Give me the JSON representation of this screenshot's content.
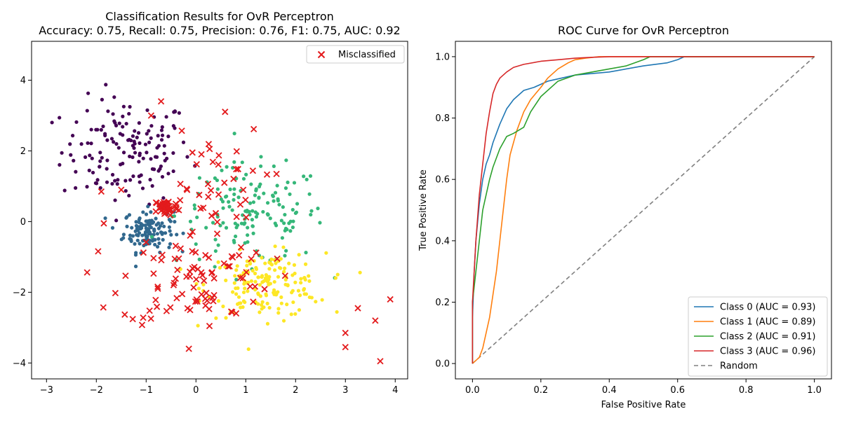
{
  "chart_data": [
    {
      "type": "scatter",
      "title": "Classification Results for OvR Perceptron",
      "subtitle": "Accuracy: 0.75, Recall: 0.75, Precision: 0.76, F1: 0.75, AUC: 0.92",
      "xlabel": "",
      "ylabel": "",
      "xlim": [
        -3.3,
        4.25
      ],
      "ylim": [
        -4.45,
        5.1
      ],
      "x_ticks": [
        "−3",
        "−2",
        "−1",
        "0",
        "1",
        "2",
        "3",
        "4"
      ],
      "y_ticks": [
        "−4",
        "−2",
        "0",
        "2",
        "4"
      ],
      "grid": false,
      "legend_position": "top-right",
      "legend": [
        "Misclassified"
      ],
      "class_colors": [
        "#440154",
        "#31688e",
        "#35b779",
        "#fde725"
      ],
      "misclassified_color": "#e31a1c",
      "class_clusters": [
        {
          "class": 0,
          "center": [
            -1.4,
            2.0
          ],
          "spread": [
            0.65,
            0.75
          ],
          "n": 150
        },
        {
          "class": 1,
          "center": [
            -0.95,
            -0.25
          ],
          "spread": [
            0.25,
            0.3
          ],
          "n": 130
        },
        {
          "class": 2,
          "center": [
            1.1,
            0.2
          ],
          "spread": [
            0.75,
            0.7
          ],
          "n": 150
        },
        {
          "class": 3,
          "center": [
            1.4,
            -1.8
          ],
          "spread": [
            0.6,
            0.45
          ],
          "n": 170
        }
      ],
      "misclassified_clusters": [
        {
          "center": [
            -0.6,
            0.4
          ],
          "spread": [
            0.12,
            0.12
          ],
          "n": 45
        },
        {
          "center": [
            0.0,
            -1.6
          ],
          "spread": [
            0.75,
            0.7
          ],
          "n": 90
        },
        {
          "center": [
            0.2,
            1.0
          ],
          "spread": [
            0.6,
            0.9
          ],
          "n": 40
        }
      ],
      "misclassified_outliers": [
        {
          "x": 3.9,
          "y": -2.2
        },
        {
          "x": 3.7,
          "y": -3.95
        },
        {
          "x": 3.6,
          "y": -2.8
        },
        {
          "x": 3.0,
          "y": -3.15
        },
        {
          "x": 3.0,
          "y": -3.55
        },
        {
          "x": 3.25,
          "y": -2.45
        },
        {
          "x": -1.9,
          "y": 0.85
        },
        {
          "x": -1.85,
          "y": -0.05
        },
        {
          "x": -1.5,
          "y": 0.9
        },
        {
          "x": -0.7,
          "y": 3.4
        },
        {
          "x": -0.9,
          "y": 3.0
        }
      ]
    },
    {
      "type": "line",
      "title": "ROC Curve for OvR Perceptron",
      "xlabel": "False Positive Rate",
      "ylabel": "True Positive Rate",
      "xlim": [
        -0.05,
        1.05
      ],
      "ylim": [
        -0.05,
        1.05
      ],
      "x_ticks": [
        "0.0",
        "0.2",
        "0.4",
        "0.6",
        "0.8",
        "1.0"
      ],
      "y_ticks": [
        "0.0",
        "0.2",
        "0.4",
        "0.6",
        "0.8",
        "1.0"
      ],
      "grid": false,
      "legend_position": "bottom-right",
      "series": [
        {
          "name": "Class 0 (AUC = 0.93)",
          "color": "#1f77b4",
          "x": [
            0,
            0,
            0.005,
            0.01,
            0.02,
            0.03,
            0.04,
            0.05,
            0.06,
            0.07,
            0.08,
            0.1,
            0.12,
            0.15,
            0.18,
            0.22,
            0.3,
            0.4,
            0.5,
            0.57,
            0.6,
            0.62,
            1.0
          ],
          "y": [
            0,
            0.15,
            0.3,
            0.4,
            0.52,
            0.6,
            0.65,
            0.68,
            0.72,
            0.75,
            0.78,
            0.83,
            0.86,
            0.89,
            0.9,
            0.92,
            0.94,
            0.95,
            0.97,
            0.98,
            0.99,
            1.0,
            1.0
          ]
        },
        {
          "name": "Class 1 (AUC = 0.89)",
          "color": "#ff7f0e",
          "x": [
            0,
            0.02,
            0.03,
            0.05,
            0.07,
            0.08,
            0.09,
            0.1,
            0.11,
            0.13,
            0.15,
            0.17,
            0.2,
            0.22,
            0.25,
            0.28,
            0.3,
            0.33,
            0.37,
            1.0
          ],
          "y": [
            0,
            0.02,
            0.05,
            0.15,
            0.3,
            0.4,
            0.5,
            0.6,
            0.68,
            0.76,
            0.82,
            0.86,
            0.9,
            0.93,
            0.96,
            0.98,
            0.99,
            0.995,
            1.0,
            1.0
          ]
        },
        {
          "name": "Class 2 (AUC = 0.91)",
          "color": "#2ca02c",
          "x": [
            0,
            0,
            0.01,
            0.02,
            0.03,
            0.04,
            0.05,
            0.06,
            0.07,
            0.08,
            0.1,
            0.12,
            0.15,
            0.17,
            0.2,
            0.25,
            0.3,
            0.35,
            0.4,
            0.45,
            0.5,
            0.52,
            1.0
          ],
          "y": [
            0,
            0.2,
            0.3,
            0.4,
            0.5,
            0.55,
            0.6,
            0.64,
            0.67,
            0.7,
            0.74,
            0.75,
            0.77,
            0.82,
            0.87,
            0.92,
            0.94,
            0.95,
            0.96,
            0.97,
            0.99,
            1.0,
            1.0
          ]
        },
        {
          "name": "Class 3 (AUC = 0.96)",
          "color": "#d62728",
          "x": [
            0,
            0,
            0.01,
            0.02,
            0.03,
            0.04,
            0.05,
            0.06,
            0.07,
            0.08,
            0.1,
            0.12,
            0.15,
            0.2,
            0.25,
            0.3,
            0.35,
            0.4,
            1.0
          ],
          "y": [
            0,
            0.2,
            0.4,
            0.55,
            0.65,
            0.75,
            0.82,
            0.88,
            0.91,
            0.93,
            0.95,
            0.965,
            0.975,
            0.985,
            0.99,
            0.995,
            0.998,
            1.0,
            1.0
          ]
        },
        {
          "name": "Random",
          "color": "#808080",
          "dash": "6,4",
          "x": [
            0,
            1
          ],
          "y": [
            0,
            1
          ]
        }
      ]
    }
  ]
}
